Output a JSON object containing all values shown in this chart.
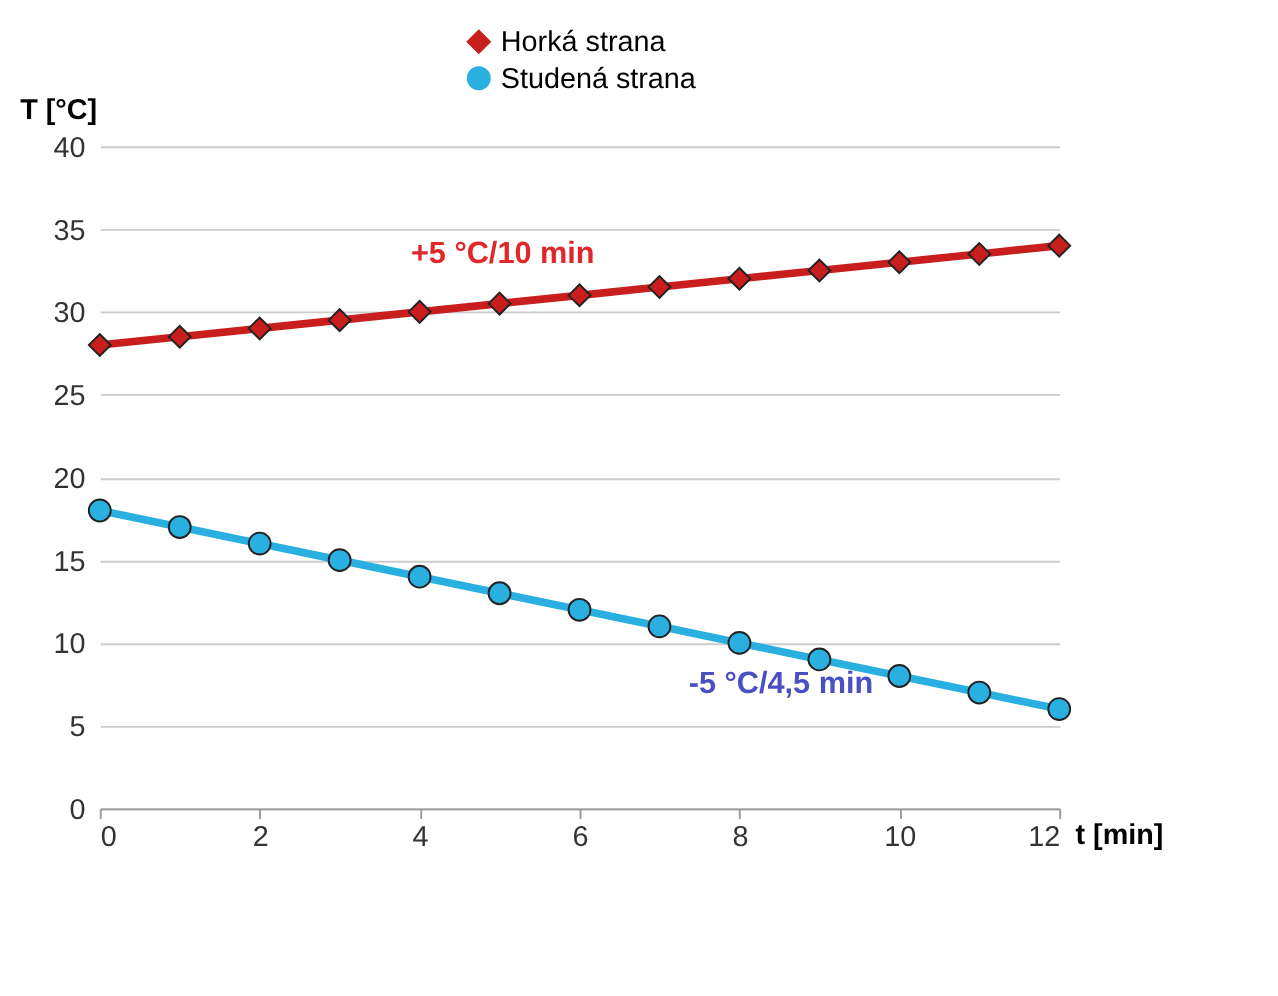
{
  "chart_data": {
    "type": "line",
    "xlabel": "t [min]",
    "ylabel": "T [°C]",
    "x": [
      0,
      1,
      2,
      3,
      4,
      5,
      6,
      7,
      8,
      9,
      10,
      11,
      12
    ],
    "series": [
      {
        "name": "Horká strana",
        "color": "#c81e1e",
        "marker": "diamond",
        "values": [
          28,
          28.5,
          29,
          29.5,
          30,
          30.5,
          31,
          31.5,
          32,
          32.5,
          33,
          33.5,
          34
        ]
      },
      {
        "name": "Studená strana",
        "color": "#2ab0e0",
        "marker": "circle",
        "values": [
          18,
          17,
          16,
          15,
          14,
          13,
          12,
          11,
          10,
          9,
          8,
          7,
          6
        ]
      }
    ],
    "annotations": [
      "+5 °C/10 min",
      "-5 °C/4,5 min"
    ],
    "xlim": [
      0,
      12
    ],
    "xticks": [
      0,
      2,
      4,
      6,
      8,
      10,
      12
    ],
    "ylim": [
      0,
      40
    ],
    "yticks": [
      0,
      5,
      10,
      15,
      20,
      25,
      30,
      35,
      40
    ],
    "grid": "y",
    "legend": "top",
    "line_style": "solid"
  }
}
